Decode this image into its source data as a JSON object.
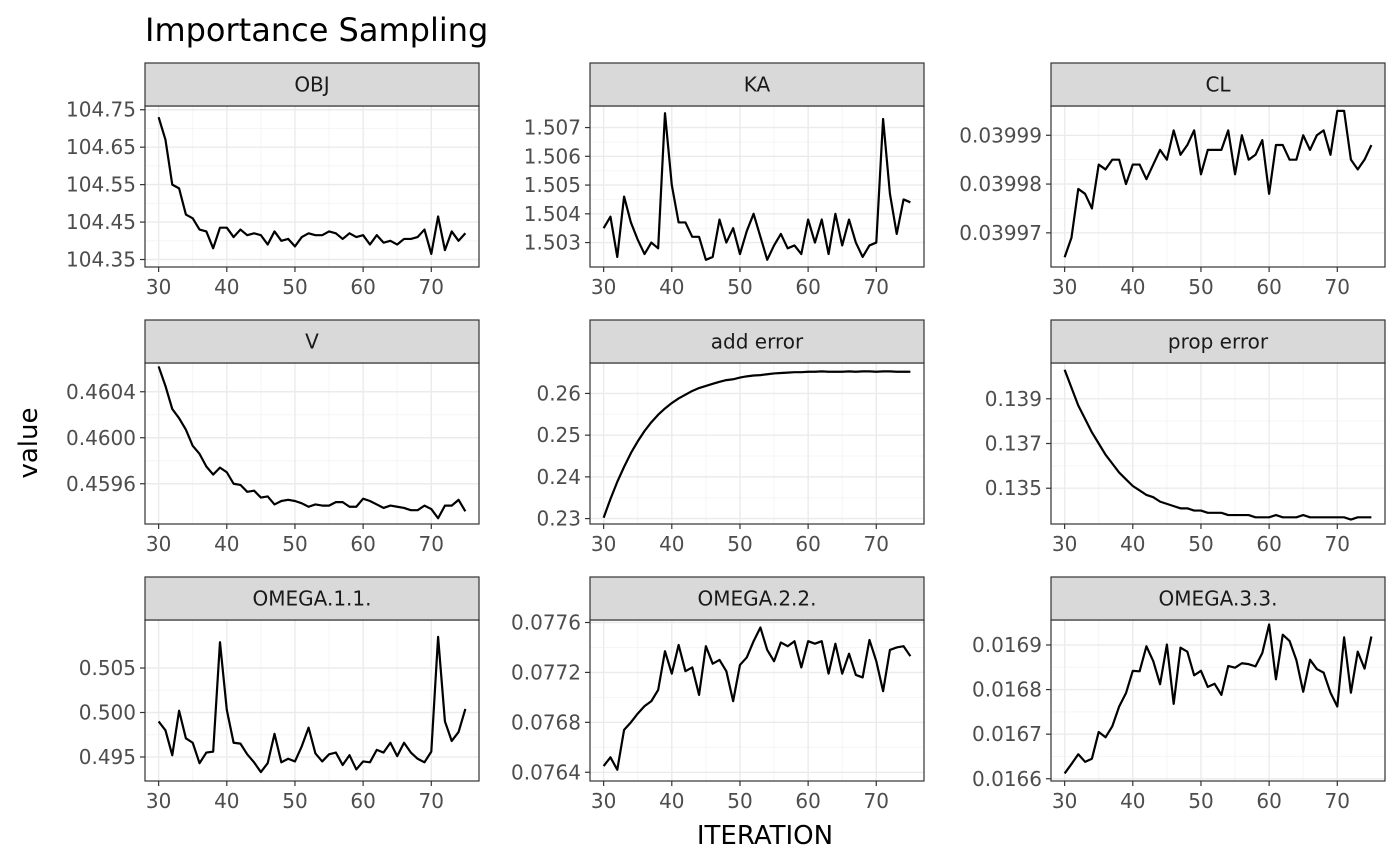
{
  "chart_data": {
    "type": "line",
    "title": "Importance Sampling",
    "xlabel": "ITERATION",
    "ylabel": "value",
    "facet_layout": "3x3",
    "x_ticks": [
      30,
      40,
      50,
      60,
      70
    ],
    "xlim": [
      28,
      77
    ],
    "grid": true,
    "theme": "bw",
    "colors": {
      "line": "#000000",
      "strip_fill": "#d9d9d9",
      "strip_border": "#333333",
      "grid_major": "#ebebeb",
      "grid_minor": "#f5f5f5",
      "tick_text": "#4d4d4d"
    },
    "panels": [
      {
        "name": "OBJ",
        "ylim": [
          104.33,
          104.76
        ],
        "y_ticks": [
          "104.35",
          "104.45",
          "104.55",
          "104.65",
          "104.75"
        ],
        "x": [
          30,
          31,
          32,
          33,
          34,
          35,
          36,
          37,
          38,
          39,
          40,
          41,
          42,
          43,
          44,
          45,
          46,
          47,
          48,
          49,
          50,
          51,
          52,
          53,
          54,
          55,
          56,
          57,
          58,
          59,
          60,
          61,
          62,
          63,
          64,
          65,
          66,
          67,
          68,
          69,
          70,
          71,
          72,
          73,
          74,
          75
        ],
        "values": [
          104.73,
          104.67,
          104.55,
          104.54,
          104.47,
          104.46,
          104.43,
          104.425,
          104.38,
          104.435,
          104.435,
          104.41,
          104.43,
          104.415,
          104.42,
          104.415,
          104.39,
          104.425,
          104.4,
          104.405,
          104.385,
          104.41,
          104.42,
          104.415,
          104.415,
          104.425,
          104.42,
          104.405,
          104.42,
          104.41,
          104.415,
          104.39,
          104.415,
          104.395,
          104.4,
          104.39,
          104.405,
          104.405,
          104.41,
          104.43,
          104.365,
          104.465,
          104.375,
          104.425,
          104.4,
          104.42
        ]
      },
      {
        "name": "KA",
        "ylim": [
          1.50215,
          1.50775
        ],
        "y_ticks": [
          "1.503",
          "1.504",
          "1.505",
          "1.506",
          "1.507"
        ],
        "x": [
          30,
          31,
          32,
          33,
          34,
          35,
          36,
          37,
          38,
          39,
          40,
          41,
          42,
          43,
          44,
          45,
          46,
          47,
          48,
          49,
          50,
          51,
          52,
          53,
          54,
          55,
          56,
          57,
          58,
          59,
          60,
          61,
          62,
          63,
          64,
          65,
          66,
          67,
          68,
          69,
          70,
          71,
          72,
          73,
          74,
          75
        ],
        "values": [
          1.5035,
          1.5039,
          1.5025,
          1.5046,
          1.5037,
          1.5031,
          1.5026,
          1.503,
          1.5028,
          1.5075,
          1.505,
          1.5037,
          1.5037,
          1.5032,
          1.5032,
          1.5024,
          1.5025,
          1.5038,
          1.503,
          1.5035,
          1.5026,
          1.5034,
          1.504,
          1.5032,
          1.5024,
          1.5029,
          1.5033,
          1.5028,
          1.5029,
          1.5026,
          1.5038,
          1.503,
          1.5038,
          1.5026,
          1.504,
          1.5029,
          1.5038,
          1.503,
          1.5025,
          1.5029,
          1.503,
          1.5073,
          1.5047,
          1.5033,
          1.5045,
          1.5044
        ]
      },
      {
        "name": "CL",
        "ylim": [
          0.039963,
          0.039996
        ],
        "y_ticks": [
          "0.03997",
          "0.03998",
          "0.03999"
        ],
        "x": [
          30,
          31,
          32,
          33,
          34,
          35,
          36,
          37,
          38,
          39,
          40,
          41,
          42,
          43,
          44,
          45,
          46,
          47,
          48,
          49,
          50,
          51,
          52,
          53,
          54,
          55,
          56,
          57,
          58,
          59,
          60,
          61,
          62,
          63,
          64,
          65,
          66,
          67,
          68,
          69,
          70,
          71,
          72,
          73,
          74,
          75
        ],
        "values": [
          0.039965,
          0.039969,
          0.039979,
          0.039978,
          0.039975,
          0.039984,
          0.039983,
          0.039985,
          0.039985,
          0.03998,
          0.039984,
          0.039984,
          0.039981,
          0.039984,
          0.039987,
          0.039985,
          0.039991,
          0.039986,
          0.039988,
          0.039991,
          0.039982,
          0.039987,
          0.039987,
          0.039987,
          0.039991,
          0.039982,
          0.03999,
          0.039985,
          0.039986,
          0.039989,
          0.039978,
          0.039988,
          0.039988,
          0.039985,
          0.039985,
          0.03999,
          0.039987,
          0.03999,
          0.039991,
          0.039986,
          0.039995,
          0.039995,
          0.039985,
          0.039983,
          0.039985,
          0.039988
        ]
      },
      {
        "name": "V",
        "ylim": [
          0.45925,
          0.46065
        ],
        "y_ticks": [
          "0.4596",
          "0.4600",
          "0.4604"
        ],
        "x": [
          30,
          31,
          32,
          33,
          34,
          35,
          36,
          37,
          38,
          39,
          40,
          41,
          42,
          43,
          44,
          45,
          46,
          47,
          48,
          49,
          50,
          51,
          52,
          53,
          54,
          55,
          56,
          57,
          58,
          59,
          60,
          61,
          62,
          63,
          64,
          65,
          66,
          67,
          68,
          69,
          70,
          71,
          72,
          73,
          74,
          75
        ],
        "values": [
          0.46062,
          0.46045,
          0.46025,
          0.46017,
          0.46007,
          0.45993,
          0.45986,
          0.45975,
          0.45968,
          0.45974,
          0.4597,
          0.4596,
          0.45959,
          0.45953,
          0.45954,
          0.45948,
          0.45949,
          0.45942,
          0.45945,
          0.45946,
          0.45945,
          0.45943,
          0.4594,
          0.45942,
          0.45941,
          0.45941,
          0.45944,
          0.45944,
          0.4594,
          0.4594,
          0.45947,
          0.45945,
          0.45942,
          0.45939,
          0.45941,
          0.4594,
          0.45939,
          0.45937,
          0.45937,
          0.45941,
          0.45938,
          0.4593,
          0.45941,
          0.45941,
          0.45946,
          0.45936
        ]
      },
      {
        "name": "add error",
        "ylim": [
          0.2287,
          0.2673
        ],
        "y_ticks": [
          "0.23",
          "0.24",
          "0.25",
          "0.26"
        ],
        "x": [
          30,
          31,
          32,
          33,
          34,
          35,
          36,
          37,
          38,
          39,
          40,
          41,
          42,
          43,
          44,
          45,
          46,
          47,
          48,
          49,
          50,
          51,
          52,
          53,
          54,
          55,
          56,
          57,
          58,
          59,
          60,
          61,
          62,
          63,
          64,
          65,
          66,
          67,
          68,
          69,
          70,
          71,
          72,
          73,
          74,
          75
        ],
        "values": [
          0.2302,
          0.2347,
          0.2388,
          0.2424,
          0.2457,
          0.2485,
          0.251,
          0.2531,
          0.2549,
          0.2564,
          0.2577,
          0.2588,
          0.2597,
          0.2606,
          0.2613,
          0.2618,
          0.2623,
          0.2628,
          0.2632,
          0.2634,
          0.2638,
          0.2641,
          0.2643,
          0.2644,
          0.2646,
          0.2648,
          0.2649,
          0.265,
          0.2651,
          0.2651,
          0.2652,
          0.2652,
          0.2653,
          0.2652,
          0.2652,
          0.2652,
          0.2653,
          0.2652,
          0.2653,
          0.2653,
          0.2652,
          0.2653,
          0.2653,
          0.2652,
          0.2652,
          0.2652
        ]
      },
      {
        "name": "prop error",
        "ylim": [
          0.1334,
          0.1406
        ],
        "y_ticks": [
          "0.135",
          "0.137",
          "0.139"
        ],
        "x": [
          30,
          31,
          32,
          33,
          34,
          35,
          36,
          37,
          38,
          39,
          40,
          41,
          42,
          43,
          44,
          45,
          46,
          47,
          48,
          49,
          50,
          51,
          52,
          53,
          54,
          55,
          56,
          57,
          58,
          59,
          60,
          61,
          62,
          63,
          64,
          65,
          66,
          67,
          68,
          69,
          70,
          71,
          72,
          73,
          74,
          75
        ],
        "values": [
          0.1403,
          0.1395,
          0.1387,
          0.1381,
          0.1375,
          0.137,
          0.1365,
          0.1361,
          0.1357,
          0.1354,
          0.1351,
          0.1349,
          0.1347,
          0.1346,
          0.1344,
          0.1343,
          0.1342,
          0.1341,
          0.1341,
          0.134,
          0.134,
          0.1339,
          0.1339,
          0.1339,
          0.1338,
          0.1338,
          0.1338,
          0.1338,
          0.1337,
          0.1337,
          0.1337,
          0.1338,
          0.1337,
          0.1337,
          0.1337,
          0.1338,
          0.1337,
          0.1337,
          0.1337,
          0.1337,
          0.1337,
          0.1337,
          0.1336,
          0.1337,
          0.1337,
          0.1337
        ]
      },
      {
        "name": "OMEGA.1.1.",
        "ylim": [
          0.4923,
          0.5104
        ],
        "y_ticks": [
          "0.495",
          "0.500",
          "0.505"
        ],
        "x": [
          30,
          31,
          32,
          33,
          34,
          35,
          36,
          37,
          38,
          39,
          40,
          41,
          42,
          43,
          44,
          45,
          46,
          47,
          48,
          49,
          50,
          51,
          52,
          53,
          54,
          55,
          56,
          57,
          58,
          59,
          60,
          61,
          62,
          63,
          64,
          65,
          66,
          67,
          68,
          69,
          70,
          71,
          72,
          73,
          74,
          75
        ],
        "values": [
          0.499,
          0.498,
          0.4952,
          0.5002,
          0.4971,
          0.4966,
          0.4943,
          0.4955,
          0.4956,
          0.5079,
          0.5003,
          0.4966,
          0.4965,
          0.4953,
          0.4944,
          0.4933,
          0.4943,
          0.4976,
          0.4944,
          0.4948,
          0.4945,
          0.4962,
          0.4983,
          0.4954,
          0.4945,
          0.4953,
          0.4955,
          0.4941,
          0.4952,
          0.4936,
          0.4945,
          0.4944,
          0.4958,
          0.4955,
          0.4966,
          0.4951,
          0.4966,
          0.4955,
          0.4948,
          0.4944,
          0.4956,
          0.5085,
          0.499,
          0.4968,
          0.4978,
          0.5004
        ]
      },
      {
        "name": "OMEGA.2.2.",
        "ylim": [
          0.07633,
          0.07762
        ],
        "y_ticks": [
          "0.0764",
          "0.0768",
          "0.0772",
          "0.0776"
        ],
        "x": [
          30,
          31,
          32,
          33,
          34,
          35,
          36,
          37,
          38,
          39,
          40,
          41,
          42,
          43,
          44,
          45,
          46,
          47,
          48,
          49,
          50,
          51,
          52,
          53,
          54,
          55,
          56,
          57,
          58,
          59,
          60,
          61,
          62,
          63,
          64,
          65,
          66,
          67,
          68,
          69,
          70,
          71,
          72,
          73,
          74,
          75
        ],
        "values": [
          0.07645,
          0.07652,
          0.07642,
          0.07674,
          0.0768,
          0.07687,
          0.07693,
          0.07697,
          0.07706,
          0.07737,
          0.07719,
          0.07742,
          0.07721,
          0.07724,
          0.07702,
          0.07741,
          0.07727,
          0.0773,
          0.07721,
          0.07697,
          0.07726,
          0.07732,
          0.07745,
          0.07756,
          0.07738,
          0.07729,
          0.07744,
          0.07741,
          0.07745,
          0.07724,
          0.07745,
          0.07743,
          0.07745,
          0.07719,
          0.07743,
          0.07719,
          0.07735,
          0.07718,
          0.07716,
          0.07746,
          0.07729,
          0.07705,
          0.07738,
          0.0774,
          0.07741,
          0.07733
        ]
      },
      {
        "name": "OMEGA.3.3.",
        "ylim": [
          0.016595,
          0.016956
        ],
        "y_ticks": [
          "0.0166",
          "0.0167",
          "0.0168",
          "0.0169"
        ],
        "x": [
          30,
          31,
          32,
          33,
          34,
          35,
          36,
          37,
          38,
          39,
          40,
          41,
          42,
          43,
          44,
          45,
          46,
          47,
          48,
          49,
          50,
          51,
          52,
          53,
          54,
          55,
          56,
          57,
          58,
          59,
          60,
          61,
          62,
          63,
          64,
          65,
          66,
          67,
          68,
          69,
          70,
          71,
          72,
          73,
          74,
          75
        ],
        "values": [
          0.016612,
          0.016633,
          0.016655,
          0.016638,
          0.016645,
          0.016705,
          0.016693,
          0.016718,
          0.016762,
          0.016792,
          0.016842,
          0.016841,
          0.016897,
          0.016864,
          0.016812,
          0.016901,
          0.016768,
          0.016894,
          0.016885,
          0.016832,
          0.016842,
          0.016806,
          0.016813,
          0.016788,
          0.016853,
          0.016849,
          0.016859,
          0.016857,
          0.016852,
          0.016882,
          0.016946,
          0.016823,
          0.016923,
          0.016909,
          0.016866,
          0.016795,
          0.016867,
          0.016846,
          0.016838,
          0.016793,
          0.016762,
          0.016917,
          0.016793,
          0.016885,
          0.016847,
          0.016919
        ]
      }
    ]
  }
}
